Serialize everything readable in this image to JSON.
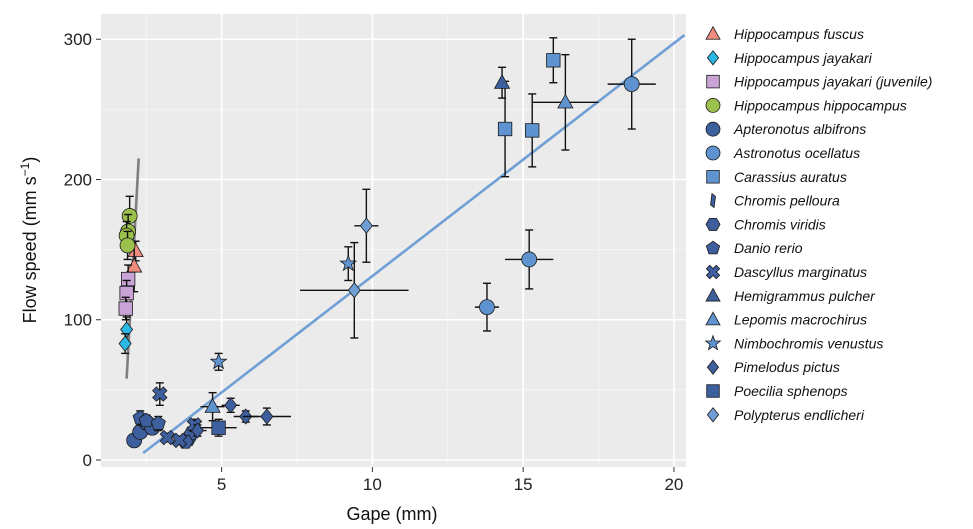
{
  "chart_data": {
    "type": "scatter",
    "xlabel": "Gape (mm)",
    "ylabel": "Flow speed (mm s",
    "ylabel_sup": "−1",
    "ylabel_close": ")",
    "xlim": [
      1.0,
      20.4
    ],
    "ylim": [
      -5,
      318
    ],
    "xticks": [
      5,
      10,
      15,
      20
    ],
    "yticks": [
      0,
      100,
      200,
      300
    ],
    "grid": true,
    "legend_position": "right",
    "fit_lines": [
      {
        "color": "#7f7f7f",
        "x": [
          1.85,
          2.25
        ],
        "y": [
          58,
          215
        ]
      },
      {
        "color": "#6f9fd4",
        "x": [
          2.4,
          20.35
        ],
        "y": [
          5,
          303
        ]
      }
    ],
    "series": [
      {
        "name": "Hippocampus fuscus",
        "marker": "triangle",
        "color": "#ef8b7d",
        "points": [
          {
            "x": 2.15,
            "y": 149,
            "ye": 7
          },
          {
            "x": 2.1,
            "y": 138,
            "ye": 18
          }
        ]
      },
      {
        "name": "Hippocampus jayakari",
        "marker": "diamond",
        "color": "#2bb8e6",
        "points": [
          {
            "x": 1.85,
            "y": 93,
            "ye": 9
          },
          {
            "x": 1.8,
            "y": 83,
            "ye": 7
          }
        ]
      },
      {
        "name": "Hippocampus jayakari (juvenile)",
        "marker": "square",
        "color": "#c9a3d6",
        "points": [
          {
            "x": 1.9,
            "y": 129,
            "ye": 10
          },
          {
            "x": 1.85,
            "y": 119,
            "ye": 9
          },
          {
            "x": 1.82,
            "y": 108,
            "ye": 8
          }
        ]
      },
      {
        "name": "Hippocampus hippocampus",
        "marker": "circle",
        "color": "#9cc04c",
        "points": [
          {
            "x": 1.95,
            "y": 174,
            "ye": 14
          },
          {
            "x": 1.9,
            "y": 163,
            "ye": 12
          },
          {
            "x": 1.85,
            "y": 160,
            "ye": 10
          },
          {
            "x": 1.88,
            "y": 153,
            "ye": 10
          }
        ]
      },
      {
        "name": "Apteronotus albifrons",
        "marker": "circle",
        "color": "#3e5f9e",
        "points": [
          {
            "x": 2.1,
            "y": 14,
            "ye": 4
          },
          {
            "x": 2.3,
            "y": 20,
            "ye": 4
          },
          {
            "x": 2.5,
            "y": 27,
            "ye": 5
          },
          {
            "x": 2.7,
            "y": 23,
            "ye": 4
          }
        ]
      },
      {
        "name": "Astronotus ocellatus",
        "marker": "circle",
        "color": "#5e93cf",
        "points": [
          {
            "x": 13.8,
            "y": 109,
            "xe": 0.4,
            "ye": 17
          },
          {
            "x": 15.2,
            "y": 143,
            "xe": 0.8,
            "ye": 21
          },
          {
            "x": 18.6,
            "y": 268,
            "xe": 0.8,
            "ye": 32
          }
        ]
      },
      {
        "name": "Carassius auratus",
        "marker": "square",
        "color": "#5e93cf",
        "points": [
          {
            "x": 14.4,
            "y": 236,
            "ye": 34
          },
          {
            "x": 15.3,
            "y": 235,
            "ye": 26
          },
          {
            "x": 16.0,
            "y": 285,
            "ye": 16
          }
        ]
      },
      {
        "name": "Chromis pelloura",
        "marker": "sliver",
        "color": "#3e5f9e",
        "points": []
      },
      {
        "name": "Chromis viridis",
        "marker": "hexagon",
        "color": "#3e5f9e",
        "points": [
          {
            "x": 3.9,
            "y": 15,
            "ye": 3
          },
          {
            "x": 4.0,
            "y": 19,
            "ye": 3
          },
          {
            "x": 3.8,
            "y": 13,
            "ye": 2
          }
        ]
      },
      {
        "name": "Danio rerio",
        "marker": "pentagon",
        "color": "#3e5f9e",
        "points": [
          {
            "x": 2.3,
            "y": 30,
            "ye": 5
          },
          {
            "x": 2.5,
            "y": 28,
            "ye": 4
          },
          {
            "x": 2.9,
            "y": 26,
            "ye": 5
          }
        ]
      },
      {
        "name": "Dascyllus marginatus",
        "marker": "cross",
        "color": "#3e5f9e",
        "points": [
          {
            "x": 2.95,
            "y": 47,
            "ye": 8
          },
          {
            "x": 3.2,
            "y": 16,
            "ye": 3
          },
          {
            "x": 3.6,
            "y": 14,
            "ye": 3
          },
          {
            "x": 4.1,
            "y": 25,
            "ye": 4
          }
        ]
      },
      {
        "name": "Hemigrammus pulcher",
        "marker": "triangle",
        "color": "#3e5f9e",
        "points": [
          {
            "x": 14.3,
            "y": 269,
            "ye": 11
          }
        ]
      },
      {
        "name": "Lepomis macrochirus",
        "marker": "triangle",
        "color": "#5e93cf",
        "points": [
          {
            "x": 4.7,
            "y": 38,
            "xe": 0.4,
            "ye": 10
          },
          {
            "x": 16.4,
            "y": 255,
            "xe": 1.1,
            "ye": 34
          }
        ]
      },
      {
        "name": "Nimbochromis venustus",
        "marker": "star",
        "color": "#5e93cf",
        "points": [
          {
            "x": 4.9,
            "y": 70,
            "ye": 6
          },
          {
            "x": 9.2,
            "y": 140,
            "ye": 12
          }
        ]
      },
      {
        "name": "Pimelodus pictus",
        "marker": "diamond",
        "color": "#3e5f9e",
        "points": [
          {
            "x": 5.3,
            "y": 39,
            "xe": 0.3,
            "ye": 5
          },
          {
            "x": 5.8,
            "y": 31,
            "xe": 0.4,
            "ye": 4
          },
          {
            "x": 6.5,
            "y": 31,
            "xe": 0.8,
            "ye": 6
          },
          {
            "x": 4.2,
            "y": 21,
            "xe": 0.3,
            "ye": 4
          }
        ]
      },
      {
        "name": "Poecilia sphenops",
        "marker": "square",
        "color": "#3e5f9e",
        "points": [
          {
            "x": 4.9,
            "y": 23,
            "xe": 0.6,
            "ye": 6
          }
        ]
      },
      {
        "name": "Polypterus endlicheri",
        "marker": "diamond",
        "color": "#6f9fd4",
        "points": [
          {
            "x": 9.8,
            "y": 167,
            "xe": 0.4,
            "ye": 26
          },
          {
            "x": 9.4,
            "y": 121,
            "xe": 1.8,
            "ye": 34
          }
        ]
      }
    ]
  }
}
